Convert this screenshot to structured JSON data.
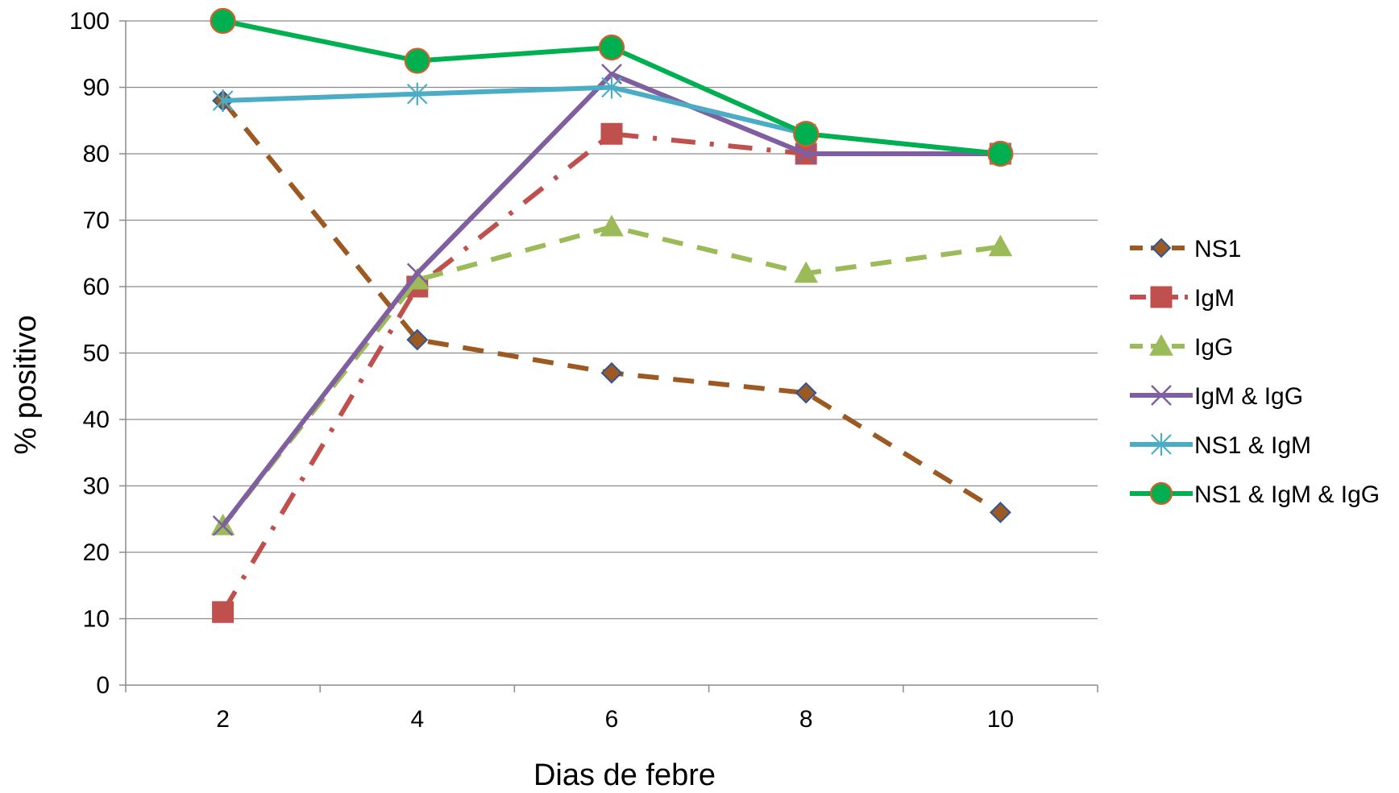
{
  "chart_data": {
    "type": "line",
    "title": "",
    "xlabel": "Dias de febre",
    "ylabel": "% positivo",
    "categories": [
      "2",
      "4",
      "6",
      "8",
      "10"
    ],
    "ylim": [
      0,
      100
    ],
    "yticks": [
      0,
      10,
      20,
      30,
      40,
      50,
      60,
      70,
      80,
      90,
      100
    ],
    "grid": "horizontal",
    "legend_position": "right",
    "series": [
      {
        "name": "NS1",
        "values": [
          88,
          52,
          47,
          44,
          26
        ],
        "color": "#9C5A22",
        "marker_color": "#C0504D",
        "dash": "dash",
        "marker": "diamond"
      },
      {
        "name": "IgM",
        "values": [
          11,
          60,
          83,
          80,
          80
        ],
        "color": "#C0504D",
        "marker_color": "#C0504D",
        "dash": "dashdot",
        "marker": "square"
      },
      {
        "name": "IgG",
        "values": [
          24,
          61,
          69,
          62,
          66
        ],
        "color": "#9BBB59",
        "marker_color": "#9BBB59",
        "dash": "dash",
        "marker": "triangle"
      },
      {
        "name": "IgM & IgG",
        "values": [
          24,
          62,
          92,
          80,
          80
        ],
        "color": "#7F5FA0",
        "marker_color": "#7F5FA0",
        "dash": "solid",
        "marker": "x"
      },
      {
        "name": "NS1 & IgM",
        "values": [
          88,
          89,
          90,
          83,
          80
        ],
        "color": "#4BACC6",
        "marker_color": "#4BACC6",
        "dash": "solid",
        "marker": "star"
      },
      {
        "name": "NS1 & IgM & IgG",
        "values": [
          100,
          94,
          96,
          83,
          80
        ],
        "color": "#00B050",
        "marker_color": "#00B050",
        "dash": "solid",
        "marker": "circle"
      }
    ]
  }
}
